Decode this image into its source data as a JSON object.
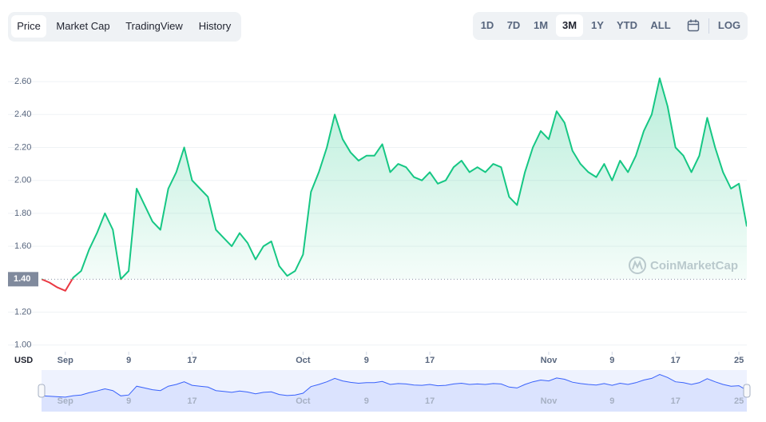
{
  "tabs": [
    "Price",
    "Market Cap",
    "TradingView",
    "History"
  ],
  "ranges": [
    "1D",
    "7D",
    "1M",
    "3M",
    "1Y",
    "YTD",
    "ALL"
  ],
  "log_label": "LOG",
  "watermark": "CoinMarketCap",
  "chart_data": {
    "type": "line",
    "y_unit": "USD",
    "categories": [
      null,
      null,
      null,
      "Sep",
      null,
      null,
      null,
      null,
      null,
      null,
      null,
      "9",
      null,
      null,
      null,
      null,
      null,
      null,
      null,
      "17",
      null,
      null,
      null,
      null,
      null,
      null,
      null,
      null,
      null,
      null,
      null,
      null,
      null,
      "Oct",
      null,
      null,
      null,
      null,
      null,
      null,
      null,
      "9",
      null,
      null,
      null,
      null,
      null,
      null,
      null,
      "17",
      null,
      null,
      null,
      null,
      null,
      null,
      null,
      null,
      null,
      null,
      null,
      null,
      null,
      null,
      "Nov",
      null,
      null,
      null,
      null,
      null,
      null,
      null,
      "9",
      null,
      null,
      null,
      null,
      null,
      null,
      null,
      "17",
      null,
      null,
      null,
      null,
      null,
      null,
      null,
      "25",
      null
    ],
    "values": [
      1.4,
      1.38,
      1.35,
      1.33,
      1.41,
      1.45,
      1.58,
      1.68,
      1.8,
      1.7,
      1.4,
      1.45,
      1.95,
      1.85,
      1.75,
      1.7,
      1.95,
      2.05,
      2.2,
      2.0,
      1.95,
      1.9,
      1.7,
      1.65,
      1.6,
      1.68,
      1.62,
      1.52,
      1.6,
      1.63,
      1.48,
      1.42,
      1.45,
      1.55,
      1.93,
      2.05,
      2.2,
      2.4,
      2.25,
      2.17,
      2.12,
      2.15,
      2.15,
      2.22,
      2.05,
      2.1,
      2.08,
      2.02,
      2.0,
      2.05,
      1.98,
      2.0,
      2.08,
      2.12,
      2.05,
      2.08,
      2.05,
      2.1,
      2.08,
      1.9,
      1.85,
      2.05,
      2.2,
      2.3,
      2.25,
      2.42,
      2.35,
      2.18,
      2.1,
      2.05,
      2.02,
      2.1,
      2.0,
      2.12,
      2.05,
      2.15,
      2.3,
      2.4,
      2.62,
      2.45,
      2.2,
      2.15,
      2.05,
      2.15,
      2.38,
      2.2,
      2.05,
      1.95,
      1.98,
      1.72
    ],
    "color": "#16c784",
    "down_color": "#ea3943",
    "navigator_color": "#3861fb",
    "baseline": {
      "value": 1.4,
      "label": "1.40"
    },
    "ylim": [
      0.96,
      2.78
    ],
    "yticks": [
      {
        "value": 1.0,
        "label": "1.00"
      },
      {
        "value": 1.2,
        "label": "1.20"
      },
      {
        "value": 1.6,
        "label": "1.60"
      },
      {
        "value": 1.8,
        "label": "1.80"
      },
      {
        "value": 2.0,
        "label": "2.00"
      },
      {
        "value": 2.2,
        "label": "2.20"
      },
      {
        "value": 2.4,
        "label": "2.40"
      },
      {
        "value": 2.6,
        "label": "2.60"
      }
    ],
    "grid": true
  }
}
